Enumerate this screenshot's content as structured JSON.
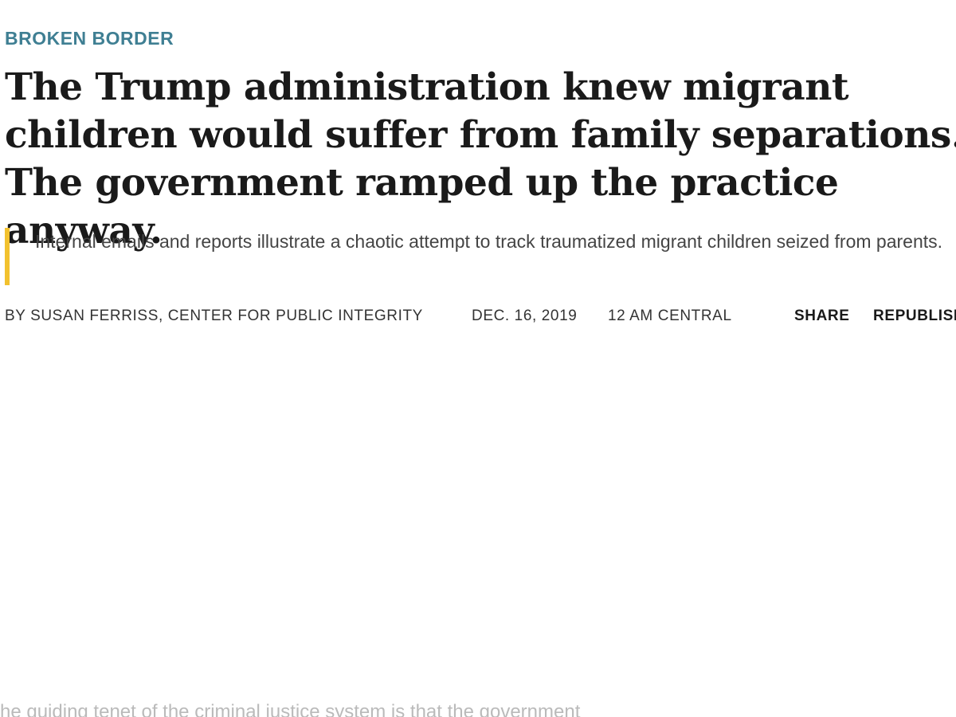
{
  "article": {
    "kicker": "BROKEN BORDER",
    "headline": "The Trump administration knew migrant children would suffer from family separations. The government ramped up the practice anyway.",
    "dek": "Internal emails and reports illustrate a chaotic attempt to track traumatized migrant children seized from parents.",
    "byline": "BY SUSAN FERRISS, CENTER FOR PUBLIC INTEGRITY",
    "date": "DEC. 16, 2019",
    "time": "12 AM CENTRAL",
    "share_label": "SHARE",
    "republish_label": "REPUBLISH",
    "body_first_line": "he guiding tenet of the criminal justice system is that the government"
  },
  "colors": {
    "kicker": "#3f7f93",
    "dek_border": "#f2c12e",
    "headline": "#1a1a1a"
  }
}
